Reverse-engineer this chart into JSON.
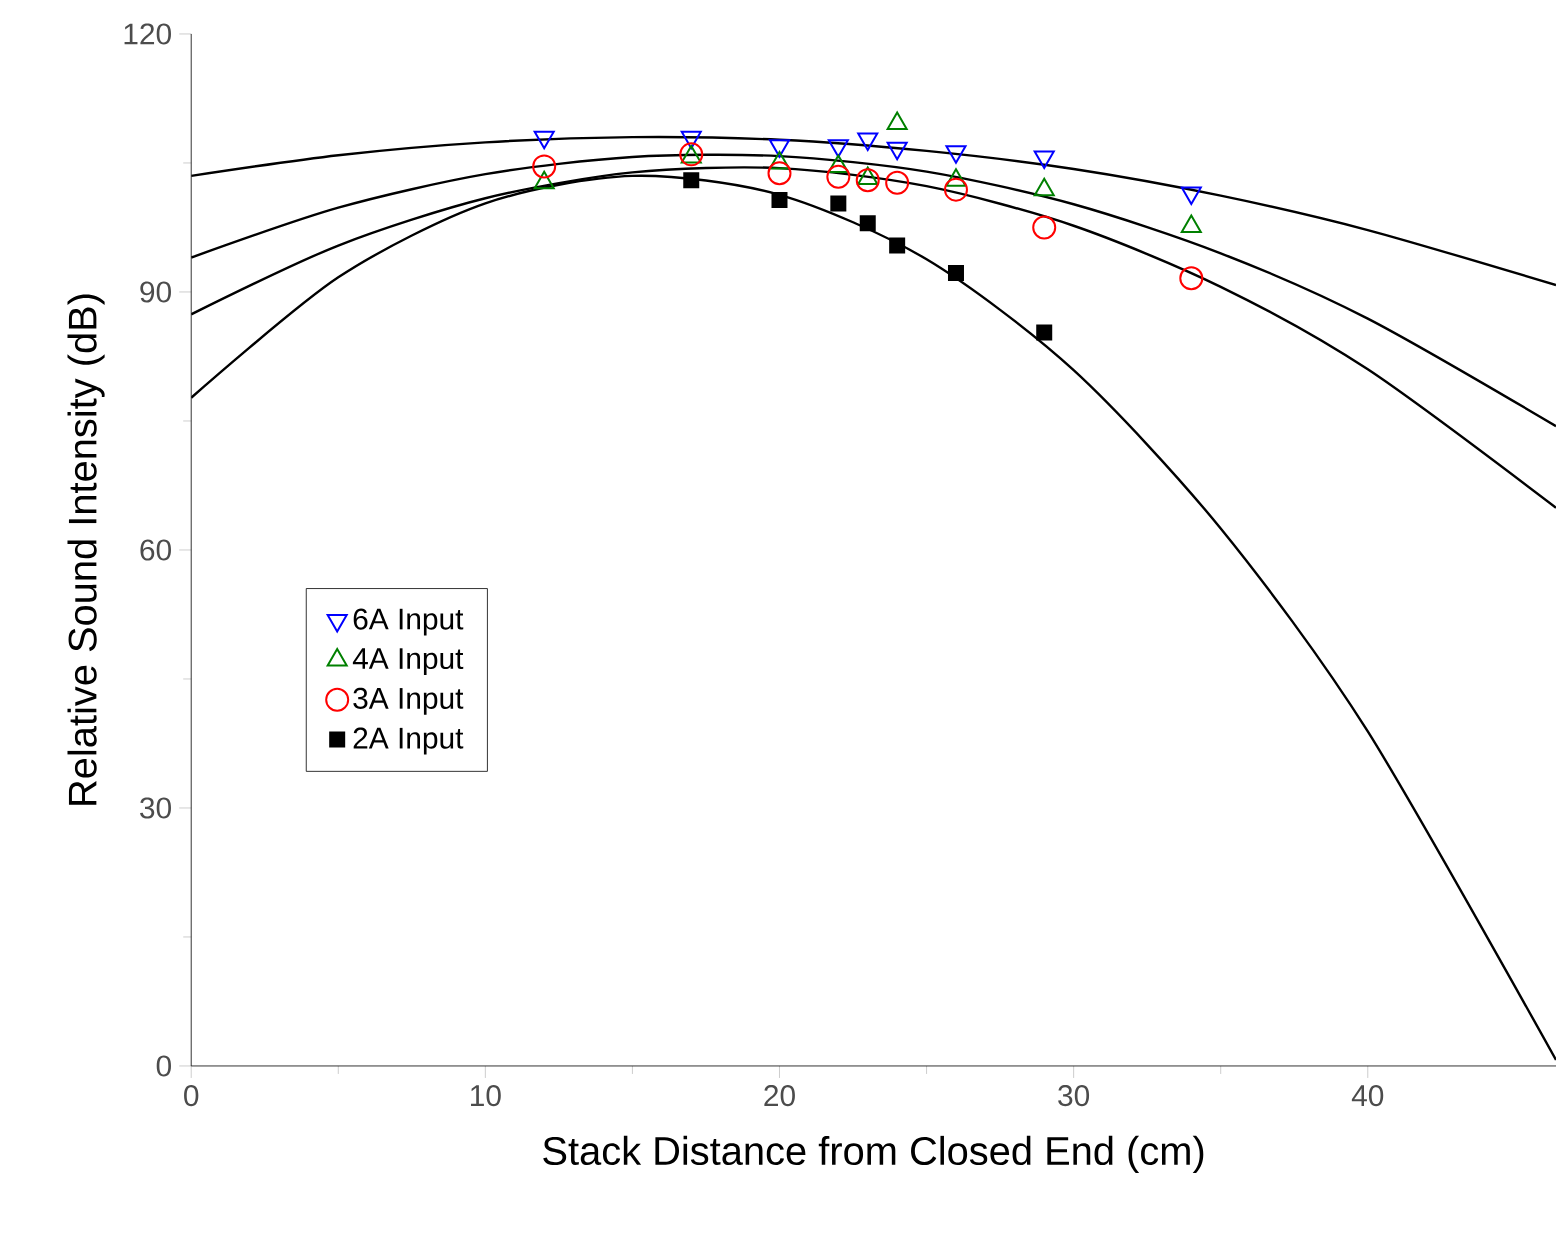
{
  "chart_data": {
    "type": "scatter",
    "xlabel": "Stack Distance from Closed End (cm)",
    "ylabel": "Relative Sound Intensity (dB)",
    "xlim": [
      0,
      46.4
    ],
    "ylim": [
      0,
      120
    ],
    "xticks": [
      0,
      10,
      20,
      30,
      40
    ],
    "yticks": [
      0,
      30,
      60,
      90,
      120
    ],
    "grid": false,
    "legend": "left",
    "series": [
      {
        "name": "6A Input",
        "marker": "triangle-down",
        "color": "#0000ff",
        "x": [
          12,
          17,
          20,
          22,
          23,
          24,
          26,
          29,
          34
        ],
        "values": [
          108,
          108,
          107,
          107,
          107.8,
          106.7,
          106.3,
          105.7,
          101.5
        ]
      },
      {
        "name": "4A Input",
        "marker": "triangle",
        "color": "#008000",
        "x": [
          12,
          17,
          20,
          22,
          23,
          24,
          26,
          29,
          34
        ],
        "values": [
          102.7,
          105.7,
          105,
          104.6,
          103.2,
          109.6,
          103,
          101.9,
          97.6
        ]
      },
      {
        "name": "3A Input",
        "marker": "circle",
        "color": "#ff0000",
        "x": [
          12,
          17,
          20,
          22,
          23,
          24,
          26,
          29,
          34
        ],
        "values": [
          104.6,
          106,
          103.8,
          103.4,
          103,
          102.7,
          101.9,
          97.5,
          91.6
        ]
      },
      {
        "name": "2A Input",
        "marker": "square",
        "color": "#000000",
        "x": [
          17,
          20,
          22,
          23,
          24,
          26,
          29
        ],
        "values": [
          103,
          100.7,
          100.3,
          98,
          95.4,
          92.2,
          85.3
        ]
      },
      {
        "type": "line",
        "marker": "none",
        "color": "#000000",
        "x": [
          0,
          5,
          10,
          15,
          20,
          25,
          30,
          35,
          40,
          46.4
        ],
        "values": [
          103.5,
          105.9,
          107.4,
          108,
          107.7,
          106.4,
          104.3,
          101.2,
          97.2,
          90.8
        ]
      },
      {
        "type": "line",
        "marker": "none",
        "color": "#000000",
        "x": [
          0,
          5,
          10,
          15,
          20,
          25,
          30,
          35,
          40,
          46.4
        ],
        "values": [
          94,
          99.8,
          103.7,
          105.7,
          105.8,
          104,
          100.2,
          94.5,
          86.9,
          74.4
        ]
      },
      {
        "type": "line",
        "marker": "none",
        "color": "#000000",
        "x": [
          0,
          5,
          10,
          15,
          20,
          25,
          30,
          35,
          40,
          46.4
        ],
        "values": [
          87.4,
          95.4,
          100.9,
          103.9,
          104.4,
          102.3,
          97.7,
          90.6,
          81,
          64.9
        ]
      },
      {
        "type": "line",
        "marker": "none",
        "color": "#000000",
        "x": [
          0,
          5,
          10,
          15,
          20,
          25,
          30,
          35,
          40,
          46.4
        ],
        "values": [
          77.7,
          91.7,
          100.3,
          103.5,
          101.3,
          93.8,
          80.9,
          62.5,
          38.9,
          0.7
        ]
      }
    ]
  }
}
